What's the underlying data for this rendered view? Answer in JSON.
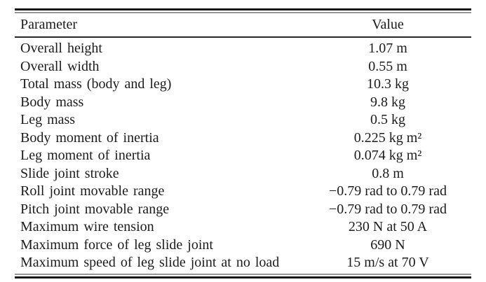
{
  "table": {
    "columns": [
      {
        "label": "Parameter",
        "align": "left"
      },
      {
        "label": "Value",
        "align": "center"
      }
    ],
    "rows": [
      {
        "parameter": "Overall height",
        "value": "1.07 m"
      },
      {
        "parameter": "Overall width",
        "value": "0.55 m"
      },
      {
        "parameter": "Total mass (body and leg)",
        "value": "10.3 kg"
      },
      {
        "parameter": "Body mass",
        "value": "9.8 kg"
      },
      {
        "parameter": "Leg mass",
        "value": "0.5 kg"
      },
      {
        "parameter": "Body moment of inertia",
        "value": "0.225 kg m²"
      },
      {
        "parameter": "Leg moment of inertia",
        "value": "0.074 kg m²"
      },
      {
        "parameter": "Slide joint stroke",
        "value": "0.8 m"
      },
      {
        "parameter": "Roll joint movable range",
        "value": "−0.79 rad to 0.79 rad"
      },
      {
        "parameter": "Pitch joint movable range",
        "value": "−0.79 rad to 0.79 rad"
      },
      {
        "parameter": "Maximum wire tension",
        "value": "230 N at 50 A"
      },
      {
        "parameter": "Maximum force of leg slide joint",
        "value": "690 N"
      },
      {
        "parameter": "Maximum speed of leg slide joint at no load",
        "value": "15 m/s at 70 V"
      }
    ]
  },
  "colors": {
    "text": "#1c1c1c",
    "rule_heavy": "#161616",
    "rule_light": "#969696",
    "background": "#ffffff"
  }
}
